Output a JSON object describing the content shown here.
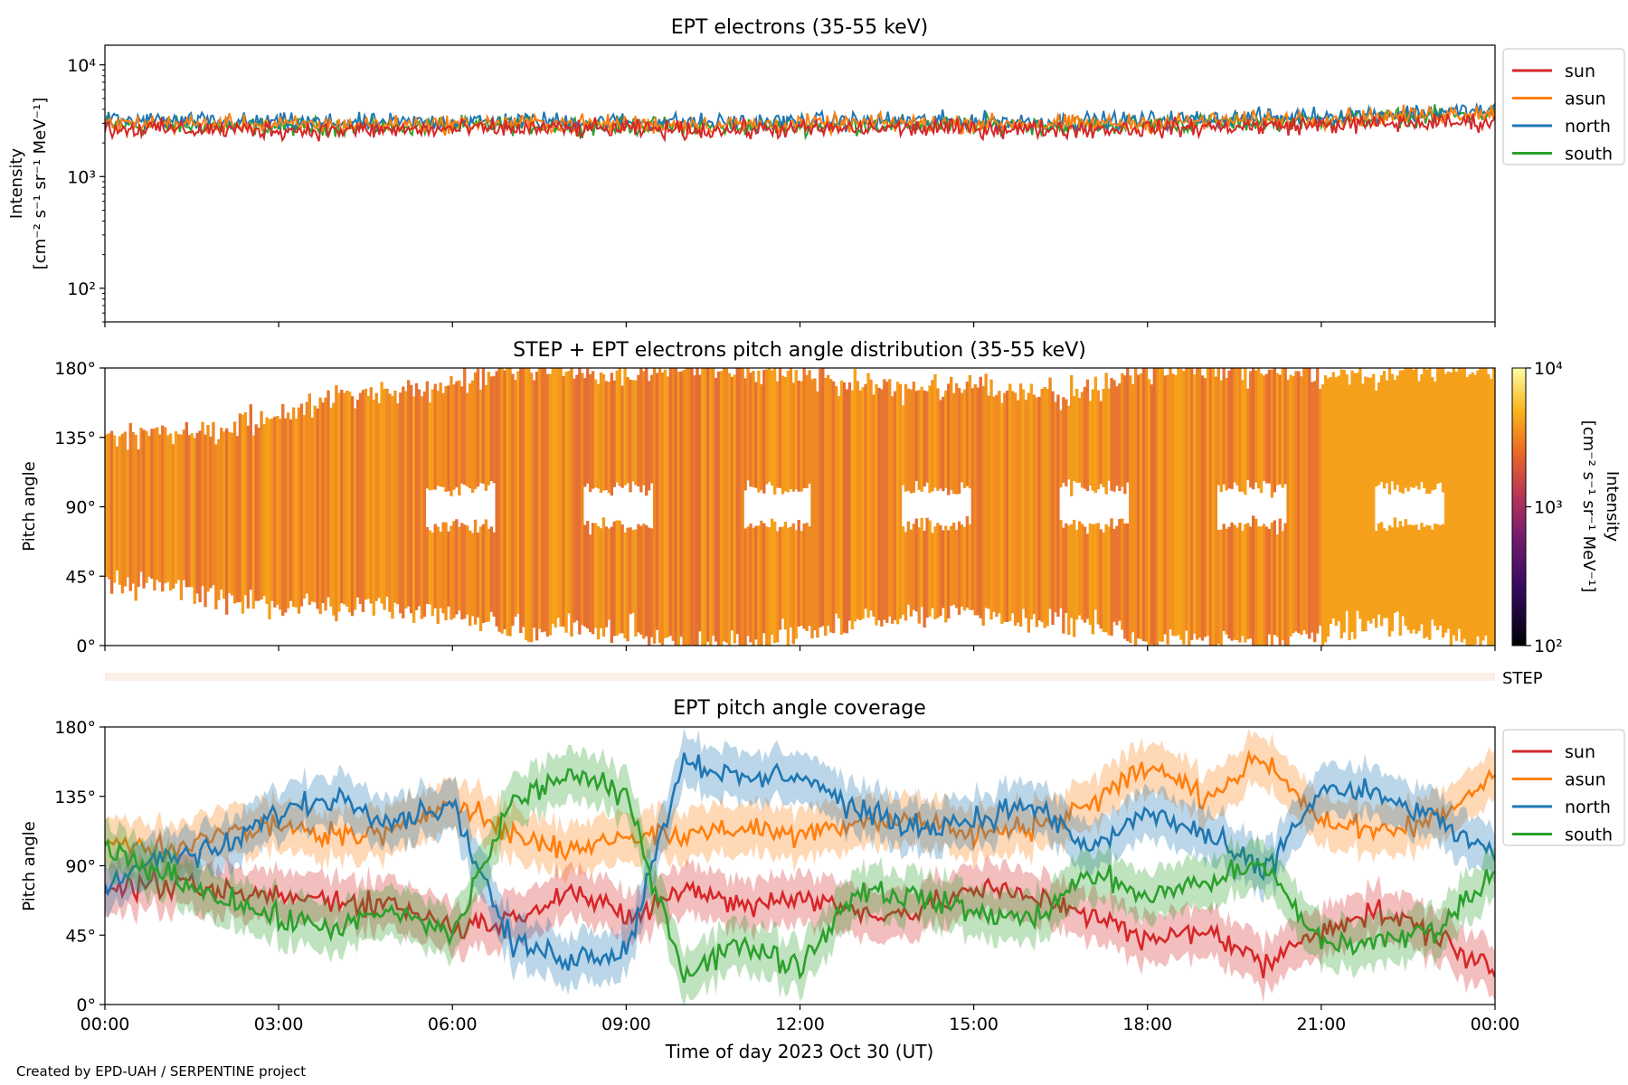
{
  "footer": "Created by EPD-UAH / SERPENTINE project",
  "colors": {
    "sun": "#d62728",
    "asun": "#ff7f0e",
    "north": "#1f77b4",
    "south": "#2ca02c"
  },
  "chart_data": [
    {
      "type": "line",
      "title": "EPT electrons (35-55 keV)",
      "ylabel_line1": "Intensity",
      "ylabel_line2": "[cm⁻² s⁻¹ sr⁻¹ MeV⁻¹]",
      "yscale": "log",
      "ylim": [
        50,
        15000
      ],
      "ytick_labels": [
        "10²",
        "10³",
        "10⁴"
      ],
      "ytick_values": [
        100,
        1000,
        10000
      ],
      "x_hours": [
        0,
        1.5,
        3,
        4.5,
        6,
        7.5,
        9,
        10.5,
        12,
        13.5,
        15,
        16.5,
        18,
        19.5,
        21,
        22.5,
        24
      ],
      "series": [
        {
          "name": "sun",
          "values": [
            2700,
            2650,
            2600,
            2600,
            2650,
            2700,
            2650,
            2600,
            2650,
            2700,
            2700,
            2650,
            2700,
            2800,
            2900,
            3000,
            3100
          ]
        },
        {
          "name": "asun",
          "values": [
            3000,
            2950,
            2900,
            2900,
            2950,
            3000,
            2950,
            2900,
            2950,
            3000,
            3000,
            2950,
            3000,
            3150,
            3300,
            3500,
            3800
          ]
        },
        {
          "name": "north",
          "values": [
            3200,
            3100,
            3050,
            3000,
            3100,
            3150,
            3100,
            3050,
            3100,
            3150,
            3150,
            3100,
            3200,
            3300,
            3500,
            3700,
            3900
          ]
        },
        {
          "name": "south",
          "values": [
            2900,
            2850,
            2800,
            2800,
            2850,
            2900,
            2850,
            2800,
            2850,
            2900,
            2900,
            2850,
            2950,
            3050,
            3200,
            3400,
            3700
          ]
        }
      ],
      "legend": [
        "sun",
        "asun",
        "north",
        "south"
      ],
      "legend_position": "outside right"
    },
    {
      "type": "heatmap",
      "title": "STEP + EPT electrons pitch angle distribution (35-55 keV)",
      "ylabel": "Pitch angle",
      "ylim": [
        0,
        180
      ],
      "ytick_labels": [
        "0°",
        "45°",
        "90°",
        "135°",
        "180°"
      ],
      "colorbar_label": "Intensity [cm⁻² s⁻¹ sr⁻¹ MeV⁻¹]",
      "colorbar_label_line1": "Intensity",
      "colorbar_label_line2": "[cm⁻² s⁻¹ sr⁻¹ MeV⁻¹]",
      "colorbar_scale": "log",
      "colorbar_range": [
        100,
        10000
      ],
      "colorbar_tick_labels": [
        "10²",
        "10³",
        "10⁴"
      ],
      "x_hours": [
        0,
        1,
        2,
        3,
        4,
        5,
        6,
        7,
        8,
        9,
        10,
        11,
        12,
        13,
        14,
        15,
        16,
        17,
        18,
        19,
        20,
        21,
        22,
        23,
        24
      ],
      "coverage_min_deg": [
        40,
        40,
        30,
        25,
        25,
        25,
        20,
        10,
        10,
        10,
        0,
        0,
        10,
        15,
        20,
        20,
        15,
        15,
        0,
        5,
        0,
        10,
        15,
        10,
        0
      ],
      "coverage_max_deg": [
        140,
        135,
        140,
        150,
        160,
        165,
        170,
        180,
        180,
        175,
        180,
        180,
        175,
        170,
        165,
        170,
        165,
        165,
        180,
        180,
        180,
        175,
        175,
        180,
        180
      ],
      "intensity": [
        2800,
        2700,
        2700,
        2650,
        2650,
        2700,
        2700,
        2700,
        2650,
        2650,
        2700,
        2700,
        2700,
        2750,
        2750,
        2700,
        2700,
        2750,
        2900,
        3000,
        3100,
        3200,
        3300,
        3500,
        3700
      ]
    },
    {
      "type": "line",
      "title": "EPT pitch angle coverage",
      "ylabel": "Pitch angle",
      "xlabel": "Time of day 2023 Oct 30 (UT)",
      "ylim": [
        0,
        180
      ],
      "ytick_labels": [
        "0°",
        "45°",
        "90°",
        "135°",
        "180°"
      ],
      "xtick_labels": [
        "00:00",
        "03:00",
        "06:00",
        "09:00",
        "12:00",
        "15:00",
        "18:00",
        "21:00",
        "00:00"
      ],
      "step_label": "STEP",
      "x_hours": [
        0,
        1,
        2,
        3,
        4,
        5,
        6,
        7,
        8,
        9,
        10,
        11,
        12,
        13,
        14,
        15,
        16,
        17,
        18,
        19,
        20,
        21,
        22,
        23,
        24
      ],
      "series": [
        {
          "name": "sun",
          "values": [
            75,
            78,
            72,
            70,
            68,
            65,
            50,
            55,
            75,
            55,
            75,
            65,
            70,
            60,
            60,
            75,
            70,
            60,
            40,
            50,
            25,
            50,
            60,
            45,
            20
          ]
        },
        {
          "name": "asun",
          "values": [
            105,
            102,
            110,
            115,
            110,
            110,
            135,
            110,
            100,
            110,
            110,
            115,
            110,
            120,
            120,
            110,
            115,
            130,
            155,
            135,
            160,
            120,
            110,
            120,
            150
          ]
        },
        {
          "name": "north",
          "values": [
            80,
            95,
            100,
            125,
            135,
            120,
            130,
            40,
            30,
            35,
            160,
            145,
            150,
            125,
            115,
            120,
            130,
            100,
            125,
            110,
            85,
            140,
            135,
            120,
            95
          ]
        },
        {
          "name": "south",
          "values": [
            100,
            85,
            70,
            55,
            50,
            60,
            45,
            130,
            150,
            135,
            20,
            40,
            25,
            75,
            70,
            60,
            55,
            85,
            70,
            80,
            90,
            40,
            40,
            50,
            85
          ]
        }
      ],
      "legend": [
        "sun",
        "asun",
        "north",
        "south"
      ],
      "legend_position": "outside right"
    }
  ]
}
